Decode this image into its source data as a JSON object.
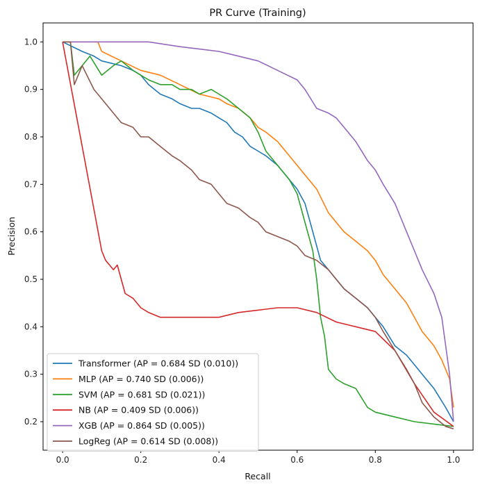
{
  "chart_data": {
    "type": "line",
    "title": "PR Curve (Training)",
    "xlabel": "Recall",
    "ylabel": "Precision",
    "xlim": [
      -0.05,
      1.05
    ],
    "ylim": [
      0.14,
      1.04
    ],
    "xticks": [
      "0.0",
      "0.2",
      "0.4",
      "0.6",
      "0.8",
      "1.0"
    ],
    "yticks": [
      "0.2",
      "0.3",
      "0.4",
      "0.5",
      "0.6",
      "0.7",
      "0.8",
      "0.9",
      "1.0"
    ],
    "grid": false,
    "legend_position": "lower-left",
    "series": [
      {
        "name": "Transformer (AP = 0.684 SD (0.010))",
        "color": "#1f77b4",
        "x": [
          0.0,
          0.05,
          0.08,
          0.1,
          0.15,
          0.18,
          0.2,
          0.22,
          0.25,
          0.28,
          0.3,
          0.33,
          0.35,
          0.38,
          0.4,
          0.42,
          0.44,
          0.46,
          0.48,
          0.5,
          0.52,
          0.55,
          0.58,
          0.6,
          0.62,
          0.64,
          0.66,
          0.68,
          0.7,
          0.72,
          0.75,
          0.78,
          0.8,
          0.82,
          0.85,
          0.88,
          0.9,
          0.92,
          0.95,
          0.98,
          1.0
        ],
        "y": [
          1.0,
          0.98,
          0.97,
          0.96,
          0.95,
          0.94,
          0.93,
          0.91,
          0.89,
          0.88,
          0.87,
          0.86,
          0.86,
          0.85,
          0.84,
          0.83,
          0.81,
          0.8,
          0.78,
          0.77,
          0.76,
          0.74,
          0.71,
          0.69,
          0.66,
          0.6,
          0.54,
          0.52,
          0.5,
          0.48,
          0.46,
          0.44,
          0.42,
          0.4,
          0.36,
          0.34,
          0.32,
          0.3,
          0.27,
          0.23,
          0.2
        ]
      },
      {
        "name": "MLP (AP = 0.740 SD (0.006))",
        "color": "#ff7f0e",
        "x": [
          0.0,
          0.05,
          0.09,
          0.1,
          0.15,
          0.2,
          0.25,
          0.3,
          0.35,
          0.4,
          0.42,
          0.45,
          0.48,
          0.5,
          0.52,
          0.55,
          0.58,
          0.6,
          0.62,
          0.65,
          0.68,
          0.7,
          0.72,
          0.75,
          0.78,
          0.8,
          0.82,
          0.85,
          0.88,
          0.9,
          0.92,
          0.95,
          0.97,
          0.99,
          1.0
        ],
        "y": [
          1.0,
          1.0,
          1.0,
          0.98,
          0.96,
          0.94,
          0.93,
          0.91,
          0.89,
          0.88,
          0.87,
          0.86,
          0.84,
          0.82,
          0.81,
          0.79,
          0.76,
          0.74,
          0.72,
          0.69,
          0.64,
          0.62,
          0.6,
          0.58,
          0.56,
          0.54,
          0.51,
          0.48,
          0.45,
          0.42,
          0.39,
          0.36,
          0.33,
          0.29,
          0.23
        ]
      },
      {
        "name": "SVM (AP = 0.681 SD (0.021))",
        "color": "#2ca02c",
        "x": [
          0.0,
          0.02,
          0.03,
          0.05,
          0.07,
          0.1,
          0.13,
          0.15,
          0.18,
          0.2,
          0.22,
          0.25,
          0.28,
          0.3,
          0.33,
          0.35,
          0.38,
          0.4,
          0.42,
          0.45,
          0.48,
          0.5,
          0.52,
          0.55,
          0.58,
          0.6,
          0.62,
          0.64,
          0.65,
          0.66,
          0.67,
          0.68,
          0.7,
          0.72,
          0.75,
          0.78,
          0.8,
          0.85,
          0.9,
          0.95,
          1.0
        ],
        "y": [
          1.0,
          1.0,
          0.93,
          0.95,
          0.97,
          0.93,
          0.95,
          0.96,
          0.94,
          0.93,
          0.92,
          0.91,
          0.91,
          0.9,
          0.9,
          0.89,
          0.9,
          0.89,
          0.88,
          0.86,
          0.84,
          0.81,
          0.77,
          0.74,
          0.71,
          0.68,
          0.62,
          0.56,
          0.5,
          0.42,
          0.38,
          0.31,
          0.29,
          0.28,
          0.27,
          0.23,
          0.22,
          0.21,
          0.2,
          0.195,
          0.19
        ]
      },
      {
        "name": "NB (AP = 0.409 SD (0.006))",
        "color": "#d62728",
        "x": [
          0.0,
          0.05,
          0.1,
          0.11,
          0.12,
          0.13,
          0.14,
          0.15,
          0.16,
          0.18,
          0.2,
          0.22,
          0.25,
          0.3,
          0.35,
          0.4,
          0.45,
          0.5,
          0.55,
          0.6,
          0.65,
          0.7,
          0.75,
          0.8,
          0.85,
          0.9,
          0.95,
          1.0
        ],
        "y": [
          1.0,
          0.78,
          0.56,
          0.54,
          0.53,
          0.52,
          0.53,
          0.5,
          0.47,
          0.46,
          0.44,
          0.43,
          0.42,
          0.42,
          0.42,
          0.42,
          0.43,
          0.435,
          0.44,
          0.44,
          0.43,
          0.41,
          0.4,
          0.39,
          0.35,
          0.28,
          0.22,
          0.19
        ]
      },
      {
        "name": "XGB (AP = 0.864 SD (0.005))",
        "color": "#9467bd",
        "x": [
          0.0,
          0.1,
          0.22,
          0.3,
          0.35,
          0.4,
          0.45,
          0.5,
          0.55,
          0.6,
          0.62,
          0.65,
          0.68,
          0.7,
          0.72,
          0.75,
          0.78,
          0.8,
          0.82,
          0.85,
          0.88,
          0.9,
          0.92,
          0.95,
          0.97,
          0.98,
          0.99,
          1.0
        ],
        "y": [
          1.0,
          1.0,
          1.0,
          0.99,
          0.985,
          0.98,
          0.97,
          0.96,
          0.94,
          0.92,
          0.9,
          0.86,
          0.85,
          0.84,
          0.82,
          0.79,
          0.75,
          0.73,
          0.7,
          0.66,
          0.6,
          0.56,
          0.52,
          0.47,
          0.42,
          0.36,
          0.3,
          0.2
        ]
      },
      {
        "name": "LogReg (AP = 0.614 SD (0.008))",
        "color": "#8c564b",
        "x": [
          0.0,
          0.02,
          0.03,
          0.05,
          0.08,
          0.1,
          0.12,
          0.15,
          0.18,
          0.2,
          0.22,
          0.25,
          0.28,
          0.3,
          0.33,
          0.35,
          0.38,
          0.4,
          0.42,
          0.45,
          0.48,
          0.5,
          0.52,
          0.55,
          0.58,
          0.6,
          0.62,
          0.65,
          0.68,
          0.7,
          0.72,
          0.75,
          0.78,
          0.8,
          0.82,
          0.85,
          0.88,
          0.9,
          0.92,
          0.95,
          0.98,
          1.0
        ],
        "y": [
          1.0,
          1.0,
          0.91,
          0.95,
          0.9,
          0.88,
          0.86,
          0.83,
          0.82,
          0.8,
          0.8,
          0.78,
          0.76,
          0.75,
          0.73,
          0.71,
          0.7,
          0.68,
          0.66,
          0.65,
          0.63,
          0.62,
          0.6,
          0.59,
          0.58,
          0.57,
          0.55,
          0.54,
          0.52,
          0.5,
          0.48,
          0.46,
          0.44,
          0.42,
          0.39,
          0.35,
          0.31,
          0.28,
          0.24,
          0.21,
          0.19,
          0.185
        ]
      }
    ]
  }
}
